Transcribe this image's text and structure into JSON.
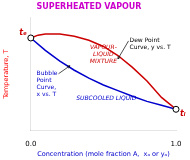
{
  "chart_data": {
    "type": "line",
    "title": "SUPERHEATED VAPOUR",
    "title_color": "#cc00cc",
    "xlabel": "Concentration (mole fraction A,  xₐ or yₐ)",
    "xlabel_color": "#0000cc",
    "ylabel": "Temperature, T",
    "ylabel_color": "#ff0000",
    "xlim": [
      0.0,
      1.0
    ],
    "ylim": [
      0.0,
      1.0
    ],
    "xticks": [
      {
        "value": 0.0,
        "label": "0.0"
      },
      {
        "value": 1.0,
        "label": "1.0"
      }
    ],
    "yticks": [],
    "tick_labels": "x",
    "grid": false,
    "series": [
      {
        "color": "#cc0000",
        "x": [
          0.0,
          0.05,
          0.1,
          0.2,
          0.3,
          0.4,
          0.5,
          0.6,
          0.7,
          0.8,
          0.9,
          1.0
        ],
        "values": [
          0.82,
          0.845,
          0.855,
          0.855,
          0.835,
          0.8,
          0.745,
          0.665,
          0.56,
          0.44,
          0.295,
          0.19
        ]
      },
      {
        "color": "#0000cc",
        "x": [
          0.0,
          0.1,
          0.2,
          0.3,
          0.4,
          0.5,
          0.6,
          0.7,
          0.8,
          0.9,
          1.0
        ],
        "values": [
          0.82,
          0.71,
          0.615,
          0.535,
          0.465,
          0.405,
          0.355,
          0.305,
          0.26,
          0.225,
          0.19
        ]
      },
      {
        "type": "scatter",
        "marker": "circle",
        "color": "#ffffff",
        "x": [
          0.0,
          1.0
        ],
        "values": [
          0.82,
          0.19
        ]
      }
    ],
    "annotations": [
      {
        "text": "tₑ",
        "color": "#cc0000"
      },
      {
        "text": "tₗ",
        "color": "#cc0000"
      },
      {
        "text": "Dew Point\nCurve, y vs. T",
        "color": "#000000"
      },
      {
        "text": "Bubble\nPoint\nCurve,\nx vs. T",
        "color": "#0000cc"
      },
      {
        "text": "VAPOUR-\nLIQUID\nMIXTURE",
        "color": "#cc0000"
      },
      {
        "text": "SUBCOOLED LIQUID",
        "color": "#0000cc"
      }
    ]
  }
}
